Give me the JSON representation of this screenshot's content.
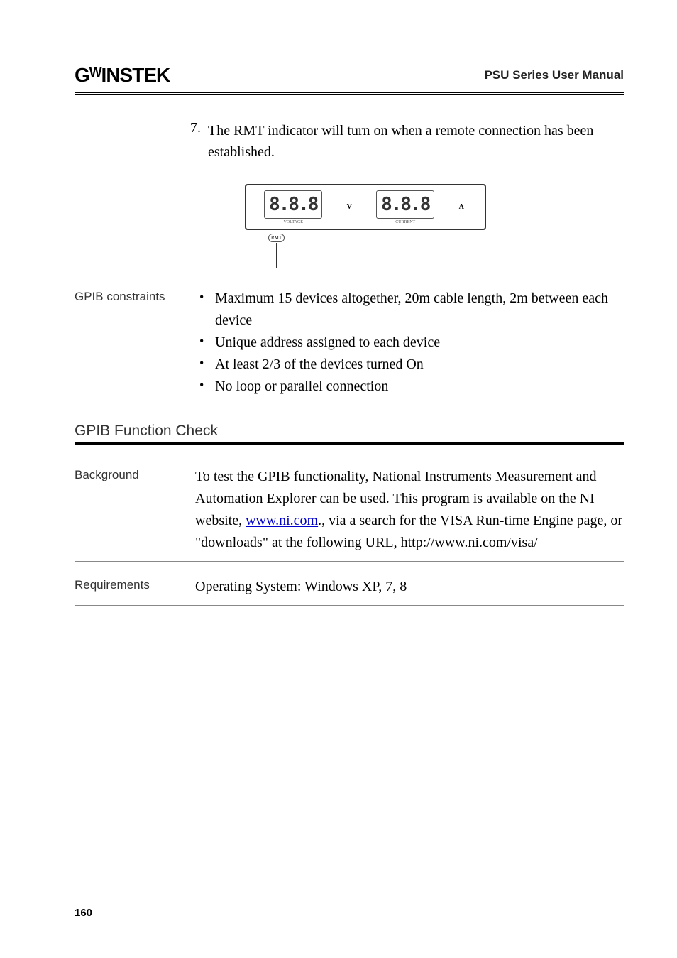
{
  "header": {
    "logo": "GᵂINSTEK",
    "title": "PSU Series User Manual"
  },
  "step": {
    "number": "7.",
    "text": "The RMT indicator will turn on when a remote connection has been established."
  },
  "lcd": {
    "voltage_digits": "8.8.8",
    "voltage_label": "VOLTAGE",
    "voltage_unit": "V",
    "current_digits": "8.8.8",
    "current_label": "CURRENT",
    "current_unit": "A",
    "rmt_label": "RMT"
  },
  "gpib_constraints": {
    "label": "GPIB constraints",
    "items": [
      "Maximum 15 devices altogether, 20m cable length, 2m between each device",
      "Unique address assigned to each device",
      "At least 2/3 of the devices turned On",
      "No loop or parallel connection"
    ]
  },
  "function_check": {
    "heading": "GPIB Function Check",
    "background": {
      "label": "Background",
      "text_before": "To test the GPIB functionality, National Instruments Measurement and Automation Explorer can be used. This program is available on the NI website, ",
      "link_text": "www.ni.com",
      "text_after": "., via a search for the VISA Run-time Engine page, or \"downloads\" at the following URL, http://www.ni.com/visa/"
    },
    "requirements": {
      "label": "Requirements",
      "text": "Operating System: Windows XP, 7, 8"
    }
  },
  "page_number": "160",
  "colors": {
    "text": "#000000",
    "link": "#0000cc",
    "rule_light": "#888888",
    "rule_heavy": "#000000"
  }
}
